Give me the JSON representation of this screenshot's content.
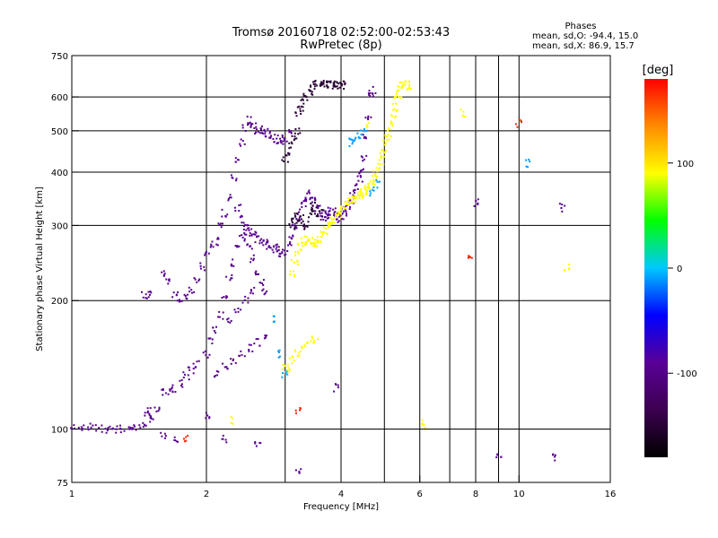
{
  "chart_data": {
    "type": "scatter",
    "title": "Tromsø 20160718 02:52:00-02:53:43",
    "subtitle": "RwPretec (8p)",
    "xlabel": "Frequency [MHz]",
    "ylabel": "Stationary phase Virtual Height [km]",
    "x_scale": "log",
    "y_scale": "log",
    "xlim": [
      1,
      16
    ],
    "ylim": [
      75,
      750
    ],
    "x_ticks": [
      1,
      2,
      4,
      6,
      8,
      10,
      16
    ],
    "x_minor": [
      3,
      5,
      7,
      9
    ],
    "y_ticks": [
      75,
      100,
      200,
      300,
      400,
      500,
      600,
      750
    ],
    "grid": true,
    "phases": {
      "heading": "Phases",
      "o_line": "mean, sd,O: -94.4, 15.0",
      "x_line": "mean, sd,X:  86.9, 15.7"
    },
    "colorbar": {
      "label": "[deg]",
      "range": [
        -180,
        180
      ],
      "ticks": [
        100,
        0,
        -100
      ],
      "colors": [
        "#000000",
        "#3c0050",
        "#5a0096",
        "#0000ff",
        "#00c8ff",
        "#00ff00",
        "#ffff00",
        "#ff8c00",
        "#ff0000"
      ]
    },
    "series": [
      {
        "phase": -94,
        "points": [
          [
            1.0,
            100
          ],
          [
            1.05,
            101
          ],
          [
            1.1,
            101
          ],
          [
            1.15,
            100
          ],
          [
            1.2,
            100
          ],
          [
            1.25,
            100
          ],
          [
            1.3,
            100
          ],
          [
            1.35,
            99
          ],
          [
            1.4,
            100
          ],
          [
            1.45,
            103
          ],
          [
            1.48,
            108
          ],
          [
            1.5,
            110
          ],
          [
            1.52,
            105
          ],
          [
            1.55,
            112
          ],
          [
            1.6,
            122
          ],
          [
            1.65,
            123
          ],
          [
            1.7,
            124
          ],
          [
            1.75,
            128
          ],
          [
            1.8,
            133
          ],
          [
            1.85,
            137
          ],
          [
            1.9,
            142
          ],
          [
            2.0,
            150
          ],
          [
            2.05,
            160
          ],
          [
            2.1,
            170
          ],
          [
            2.15,
            185
          ],
          [
            2.2,
            205
          ],
          [
            2.25,
            225
          ],
          [
            2.3,
            245
          ],
          [
            2.35,
            265
          ],
          [
            2.4,
            280
          ],
          [
            2.45,
            290
          ],
          [
            2.5,
            270
          ],
          [
            2.55,
            250
          ],
          [
            2.6,
            235
          ],
          [
            2.65,
            220
          ],
          [
            2.7,
            210
          ],
          [
            1.45,
            205
          ],
          [
            1.5,
            208
          ],
          [
            1.6,
            230
          ],
          [
            1.65,
            220
          ],
          [
            1.7,
            205
          ],
          [
            1.75,
            200
          ],
          [
            1.8,
            203
          ],
          [
            1.85,
            210
          ],
          [
            1.9,
            225
          ],
          [
            1.95,
            240
          ],
          [
            2.0,
            255
          ],
          [
            2.05,
            270
          ],
          [
            2.1,
            275
          ],
          [
            2.15,
            300
          ],
          [
            2.2,
            320
          ],
          [
            2.25,
            350
          ],
          [
            2.3,
            390
          ],
          [
            2.35,
            430
          ],
          [
            2.4,
            470
          ],
          [
            2.45,
            510
          ],
          [
            2.5,
            530
          ],
          [
            2.55,
            515
          ],
          [
            2.6,
            500
          ],
          [
            2.65,
            505
          ],
          [
            2.7,
            495
          ],
          [
            2.75,
            490
          ],
          [
            2.8,
            485
          ],
          [
            2.85,
            480
          ],
          [
            2.9,
            475
          ],
          [
            2.95,
            470
          ],
          [
            3.0,
            480
          ],
          [
            3.05,
            500
          ],
          [
            2.35,
            330
          ],
          [
            2.4,
            310
          ],
          [
            2.45,
            300
          ],
          [
            2.5,
            290
          ],
          [
            2.55,
            285
          ],
          [
            2.6,
            280
          ],
          [
            2.65,
            275
          ],
          [
            2.7,
            272
          ],
          [
            2.75,
            270
          ],
          [
            2.8,
            268
          ],
          [
            2.85,
            265
          ],
          [
            2.9,
            262
          ],
          [
            2.95,
            258
          ],
          [
            3.0,
            262
          ],
          [
            3.05,
            270
          ],
          [
            3.1,
            282
          ],
          [
            3.15,
            295
          ],
          [
            3.2,
            305
          ],
          [
            3.25,
            320
          ],
          [
            3.3,
            335
          ],
          [
            3.35,
            345
          ],
          [
            3.4,
            355
          ],
          [
            3.45,
            350
          ],
          [
            3.5,
            340
          ],
          [
            3.55,
            330
          ],
          [
            3.6,
            320
          ],
          [
            3.65,
            312
          ],
          [
            3.7,
            315
          ],
          [
            3.75,
            320
          ],
          [
            3.8,
            325
          ],
          [
            3.85,
            322
          ],
          [
            3.9,
            315
          ],
          [
            3.95,
            310
          ],
          [
            4.0,
            315
          ],
          [
            4.05,
            322
          ],
          [
            4.1,
            330
          ],
          [
            4.15,
            335
          ],
          [
            4.2,
            340
          ],
          [
            4.25,
            350
          ],
          [
            4.3,
            360
          ],
          [
            4.35,
            370
          ],
          [
            4.4,
            385
          ],
          [
            4.45,
            400
          ],
          [
            4.5,
            430
          ],
          [
            4.55,
            480
          ],
          [
            4.6,
            540
          ],
          [
            4.65,
            600
          ],
          [
            4.7,
            625
          ],
          [
            2.1,
            135
          ],
          [
            2.2,
            140
          ],
          [
            2.3,
            145
          ],
          [
            2.4,
            150
          ],
          [
            2.5,
            155
          ],
          [
            2.6,
            160
          ],
          [
            2.7,
            165
          ],
          [
            2.25,
            180
          ],
          [
            2.35,
            190
          ],
          [
            2.45,
            200
          ],
          [
            2.55,
            210
          ],
          [
            1.7,
            95
          ],
          [
            1.6,
            96
          ],
          [
            2.2,
            95
          ],
          [
            2.6,
            92
          ],
          [
            3.2,
            80
          ],
          [
            3.9,
            125
          ],
          [
            2.0,
            108
          ],
          [
            8.0,
            340
          ],
          [
            9.0,
            87
          ],
          [
            12.0,
            86
          ],
          [
            12.5,
            330
          ]
        ]
      },
      {
        "phase": -150,
        "points": [
          [
            3.2,
            545
          ],
          [
            3.25,
            560
          ],
          [
            3.3,
            580
          ],
          [
            3.35,
            600
          ],
          [
            3.4,
            615
          ],
          [
            3.45,
            630
          ],
          [
            3.5,
            640
          ],
          [
            3.55,
            645
          ],
          [
            3.6,
            645
          ],
          [
            3.65,
            640
          ],
          [
            3.7,
            640
          ],
          [
            3.75,
            640
          ],
          [
            3.8,
            638
          ],
          [
            3.85,
            640
          ],
          [
            3.9,
            638
          ],
          [
            3.95,
            640
          ],
          [
            4.0,
            640
          ],
          [
            4.05,
            640
          ],
          [
            3.0,
            430
          ],
          [
            3.05,
            440
          ],
          [
            3.1,
            460
          ],
          [
            3.15,
            480
          ],
          [
            3.2,
            500
          ],
          [
            3.1,
            300
          ],
          [
            3.15,
            310
          ],
          [
            3.2,
            315
          ],
          [
            3.25,
            312
          ],
          [
            3.3,
            305
          ],
          [
            3.35,
            300
          ],
          [
            3.4,
            320
          ],
          [
            3.45,
            332
          ],
          [
            3.5,
            325
          ],
          [
            3.55,
            318
          ],
          [
            3.6,
            320
          ]
        ]
      },
      {
        "phase": 90,
        "points": [
          [
            3.1,
            230
          ],
          [
            3.15,
            245
          ],
          [
            3.2,
            260
          ],
          [
            3.25,
            268
          ],
          [
            3.3,
            275
          ],
          [
            3.35,
            278
          ],
          [
            3.4,
            275
          ],
          [
            3.45,
            272
          ],
          [
            3.5,
            270
          ],
          [
            3.55,
            272
          ],
          [
            3.6,
            278
          ],
          [
            3.65,
            285
          ],
          [
            3.7,
            292
          ],
          [
            3.75,
            300
          ],
          [
            3.8,
            305
          ],
          [
            3.85,
            310
          ],
          [
            3.9,
            315
          ],
          [
            3.95,
            320
          ],
          [
            4.0,
            325
          ],
          [
            4.05,
            330
          ],
          [
            4.1,
            335
          ],
          [
            4.15,
            340
          ],
          [
            4.2,
            342
          ],
          [
            4.25,
            345
          ],
          [
            4.3,
            348
          ],
          [
            4.35,
            350
          ],
          [
            4.4,
            352
          ],
          [
            4.45,
            355
          ],
          [
            4.5,
            358
          ],
          [
            4.55,
            362
          ],
          [
            4.6,
            368
          ],
          [
            4.65,
            372
          ],
          [
            4.7,
            378
          ],
          [
            4.75,
            385
          ],
          [
            4.8,
            395
          ],
          [
            4.85,
            410
          ],
          [
            4.9,
            425
          ],
          [
            4.95,
            440
          ],
          [
            5.0,
            455
          ],
          [
            5.05,
            470
          ],
          [
            5.1,
            490
          ],
          [
            5.15,
            510
          ],
          [
            5.2,
            530
          ],
          [
            5.25,
            550
          ],
          [
            5.3,
            570
          ],
          [
            5.35,
            590
          ],
          [
            5.4,
            610
          ],
          [
            5.45,
            630
          ],
          [
            5.5,
            640
          ],
          [
            5.55,
            645
          ],
          [
            5.6,
            640
          ],
          [
            5.65,
            620
          ],
          [
            3.0,
            140
          ],
          [
            3.05,
            138
          ],
          [
            3.1,
            145
          ],
          [
            3.2,
            150
          ],
          [
            3.3,
            155
          ],
          [
            3.4,
            160
          ],
          [
            3.5,
            162
          ],
          [
            2.3,
            105
          ],
          [
            4.6,
            520
          ],
          [
            7.5,
            550
          ],
          [
            12.8,
            240
          ],
          [
            6.1,
            103
          ]
        ]
      },
      {
        "phase": -10,
        "points": [
          [
            2.8,
            180
          ],
          [
            2.9,
            150
          ],
          [
            3.0,
            135
          ],
          [
            4.2,
            470
          ],
          [
            4.3,
            480
          ],
          [
            4.4,
            490
          ],
          [
            4.5,
            500
          ],
          [
            4.7,
            360
          ],
          [
            4.8,
            375
          ],
          [
            10.5,
            420
          ]
        ]
      },
      {
        "phase": 170,
        "points": [
          [
            1.8,
            95
          ],
          [
            3.2,
            110
          ],
          [
            7.8,
            250
          ],
          [
            10.0,
            520
          ]
        ]
      }
    ]
  }
}
